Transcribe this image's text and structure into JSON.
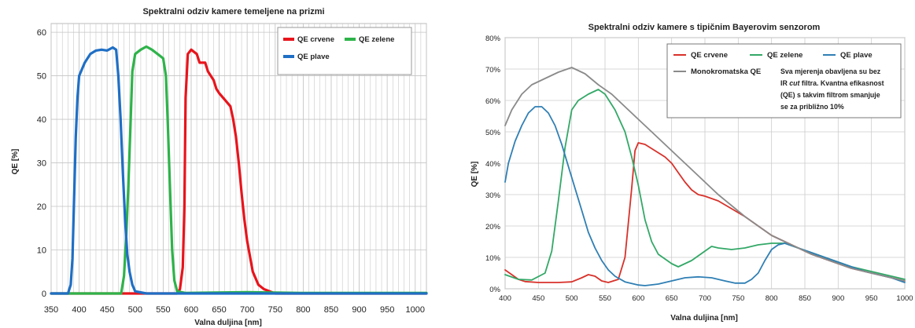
{
  "charts": [
    {
      "type": "line",
      "title": "Spektralni odziv kamere temeljene na prizmi",
      "xlabel": "Valna duljina [nm]",
      "ylabel": "QE [%]",
      "xlim": [
        350,
        1020
      ],
      "ylim": [
        0,
        62
      ],
      "xticks": [
        "350",
        "400",
        "450",
        "500",
        "550",
        "600",
        "650",
        "700",
        "750",
        "800",
        "850",
        "900",
        "950",
        "1000"
      ],
      "yticks": [
        "0",
        "10",
        "20",
        "30",
        "40",
        "50",
        "60"
      ],
      "grid": true,
      "legend_position": "top-right",
      "series": [
        {
          "name": "QE crvene",
          "color": "#e8141c",
          "points": [
            [
              350,
              0
            ],
            [
              575,
              0
            ],
            [
              580,
              1
            ],
            [
              585,
              6
            ],
            [
              588,
              20
            ],
            [
              590,
              45
            ],
            [
              594,
              55
            ],
            [
              600,
              56
            ],
            [
              610,
              55
            ],
            [
              615,
              53
            ],
            [
              625,
              53
            ],
            [
              630,
              51
            ],
            [
              640,
              49
            ],
            [
              645,
              47
            ],
            [
              650,
              46
            ],
            [
              660,
              44.5
            ],
            [
              670,
              43
            ],
            [
              675,
              40
            ],
            [
              680,
              36
            ],
            [
              685,
              30
            ],
            [
              690,
              23
            ],
            [
              695,
              17
            ],
            [
              700,
              12
            ],
            [
              710,
              5
            ],
            [
              720,
              2
            ],
            [
              730,
              1
            ],
            [
              750,
              0
            ],
            [
              1020,
              0
            ]
          ]
        },
        {
          "name": "QE zelene",
          "color": "#2eb34a",
          "points": [
            [
              350,
              0
            ],
            [
              475,
              0
            ],
            [
              480,
              4
            ],
            [
              484,
              13
            ],
            [
              488,
              25
            ],
            [
              492,
              40
            ],
            [
              495,
              51
            ],
            [
              500,
              55
            ],
            [
              510,
              56
            ],
            [
              520,
              56.7
            ],
            [
              530,
              56
            ],
            [
              540,
              55
            ],
            [
              550,
              54
            ],
            [
              555,
              50
            ],
            [
              558,
              40
            ],
            [
              562,
              25
            ],
            [
              566,
              10
            ],
            [
              570,
              3
            ],
            [
              575,
              0.5
            ],
            [
              590,
              0.1
            ],
            [
              700,
              0.3
            ],
            [
              800,
              0.1
            ],
            [
              1020,
              0.1
            ]
          ]
        },
        {
          "name": "QE plave",
          "color": "#1f6fc5",
          "points": [
            [
              350,
              0
            ],
            [
              380,
              0
            ],
            [
              385,
              2
            ],
            [
              388,
              8
            ],
            [
              391,
              22
            ],
            [
              394,
              36
            ],
            [
              397,
              45
            ],
            [
              400,
              50
            ],
            [
              410,
              53
            ],
            [
              420,
              55
            ],
            [
              430,
              55.8
            ],
            [
              440,
              56
            ],
            [
              450,
              55.8
            ],
            [
              460,
              56.5
            ],
            [
              466,
              56
            ],
            [
              470,
              50
            ],
            [
              474,
              40
            ],
            [
              478,
              28
            ],
            [
              482,
              17
            ],
            [
              486,
              9
            ],
            [
              490,
              5
            ],
            [
              495,
              2
            ],
            [
              500,
              0.5
            ],
            [
              520,
              0
            ],
            [
              1020,
              0
            ]
          ]
        }
      ]
    },
    {
      "type": "line",
      "title": "Spektralni odziv kamere s tipičnim Bayerovim senzorom",
      "xlabel": "Valna duljina [nm]",
      "ylabel": "QE [%]",
      "xlim": [
        400,
        1000
      ],
      "ylim": [
        0,
        80
      ],
      "xticks": [
        "400",
        "450",
        "500",
        "550",
        "600",
        "650",
        "700",
        "750",
        "800",
        "850",
        "900",
        "950",
        "1000"
      ],
      "yticks": [
        "0%",
        "10%",
        "20%",
        "30%",
        "40%",
        "50%",
        "60%",
        "70%",
        "80%"
      ],
      "grid": true,
      "legend_position": "top-right",
      "note": [
        "Sva mjerenja obavljena su bez",
        "IR",
        "cut",
        "filtra. Kvantna efikasnost",
        "(QE) s takvim filtrom smanjuje",
        "se za približno 10%"
      ],
      "series": [
        {
          "name": "QE crvene",
          "color": "#d8312a",
          "points": [
            [
              400,
              6
            ],
            [
              410,
              4.5
            ],
            [
              420,
              3
            ],
            [
              430,
              2.3
            ],
            [
              450,
              2
            ],
            [
              480,
              2
            ],
            [
              500,
              2.2
            ],
            [
              515,
              3.5
            ],
            [
              525,
              4.5
            ],
            [
              535,
              4
            ],
            [
              545,
              2.5
            ],
            [
              555,
              2
            ],
            [
              570,
              3
            ],
            [
              580,
              10
            ],
            [
              590,
              32
            ],
            [
              595,
              44
            ],
            [
              600,
              46.5
            ],
            [
              610,
              46
            ],
            [
              625,
              44
            ],
            [
              640,
              42
            ],
            [
              650,
              40
            ],
            [
              660,
              37
            ],
            [
              670,
              34
            ],
            [
              680,
              31.5
            ],
            [
              690,
              30
            ],
            [
              700,
              29.5
            ],
            [
              720,
              28
            ],
            [
              740,
              25.5
            ],
            [
              760,
              23
            ],
            [
              780,
              20
            ],
            [
              800,
              17
            ],
            [
              820,
              15
            ],
            [
              840,
              13
            ],
            [
              860,
              11
            ],
            [
              880,
              9.5
            ],
            [
              900,
              8
            ],
            [
              920,
              6.5
            ],
            [
              940,
              5.5
            ],
            [
              960,
              4.5
            ],
            [
              980,
              3.5
            ],
            [
              1000,
              2.5
            ]
          ]
        },
        {
          "name": "QE zelene",
          "color": "#33a867",
          "points": [
            [
              400,
              4.5
            ],
            [
              420,
              3
            ],
            [
              440,
              2.8
            ],
            [
              460,
              5
            ],
            [
              470,
              12
            ],
            [
              480,
              28
            ],
            [
              490,
              45
            ],
            [
              500,
              57
            ],
            [
              510,
              60
            ],
            [
              525,
              62
            ],
            [
              540,
              63.5
            ],
            [
              550,
              62
            ],
            [
              565,
              57
            ],
            [
              580,
              50
            ],
            [
              590,
              42
            ],
            [
              600,
              33
            ],
            [
              610,
              22
            ],
            [
              620,
              15
            ],
            [
              630,
              11
            ],
            [
              650,
              8
            ],
            [
              660,
              7
            ],
            [
              680,
              9
            ],
            [
              700,
              12
            ],
            [
              710,
              13.5
            ],
            [
              720,
              13
            ],
            [
              740,
              12.5
            ],
            [
              760,
              13
            ],
            [
              780,
              14
            ],
            [
              800,
              14.5
            ],
            [
              820,
              14.5
            ],
            [
              840,
              13
            ],
            [
              860,
              11.5
            ],
            [
              880,
              10
            ],
            [
              900,
              8.5
            ],
            [
              920,
              7
            ],
            [
              940,
              6
            ],
            [
              960,
              5
            ],
            [
              980,
              4
            ],
            [
              1000,
              3
            ]
          ]
        },
        {
          "name": "QE plave",
          "color": "#2f7fb4",
          "points": [
            [
              400,
              34
            ],
            [
              405,
              40
            ],
            [
              415,
              47
            ],
            [
              425,
              52
            ],
            [
              435,
              56
            ],
            [
              445,
              58
            ],
            [
              455,
              58
            ],
            [
              465,
              56
            ],
            [
              475,
              52
            ],
            [
              485,
              46
            ],
            [
              495,
              39
            ],
            [
              505,
              32
            ],
            [
              515,
              25
            ],
            [
              525,
              18
            ],
            [
              535,
              13
            ],
            [
              545,
              9
            ],
            [
              555,
              6
            ],
            [
              565,
              4
            ],
            [
              580,
              2.2
            ],
            [
              600,
              1.2
            ],
            [
              610,
              1
            ],
            [
              630,
              1.5
            ],
            [
              650,
              2.5
            ],
            [
              670,
              3.5
            ],
            [
              690,
              3.8
            ],
            [
              710,
              3.5
            ],
            [
              730,
              2.5
            ],
            [
              745,
              1.8
            ],
            [
              760,
              1.8
            ],
            [
              770,
              3
            ],
            [
              780,
              5
            ],
            [
              790,
              9
            ],
            [
              800,
              12.5
            ],
            [
              810,
              14
            ],
            [
              820,
              14.5
            ],
            [
              840,
              13
            ],
            [
              860,
              11.5
            ],
            [
              880,
              10
            ],
            [
              900,
              8.5
            ],
            [
              920,
              7
            ],
            [
              940,
              5.5
            ],
            [
              960,
              4.5
            ],
            [
              980,
              3.5
            ],
            [
              1000,
              2
            ]
          ]
        },
        {
          "name": "Monokromatska QE",
          "color": "#8a8a8a",
          "points": [
            [
              400,
              52
            ],
            [
              410,
              57
            ],
            [
              425,
              62
            ],
            [
              440,
              65
            ],
            [
              460,
              67
            ],
            [
              480,
              69
            ],
            [
              500,
              70.5
            ],
            [
              520,
              68.5
            ],
            [
              540,
              65
            ],
            [
              560,
              62
            ],
            [
              580,
              58
            ],
            [
              600,
              54
            ],
            [
              620,
              50
            ],
            [
              640,
              46
            ],
            [
              660,
              42
            ],
            [
              680,
              38
            ],
            [
              700,
              34
            ],
            [
              720,
              30
            ],
            [
              740,
              26.5
            ],
            [
              760,
              23
            ],
            [
              780,
              20
            ],
            [
              800,
              17
            ],
            [
              820,
              15
            ],
            [
              840,
              13
            ],
            [
              860,
              11
            ],
            [
              880,
              9.5
            ],
            [
              900,
              8
            ],
            [
              920,
              6.5
            ],
            [
              940,
              5.5
            ],
            [
              960,
              4.5
            ],
            [
              980,
              3.5
            ],
            [
              1000,
              2.5
            ]
          ]
        }
      ]
    }
  ],
  "colors": {
    "grid": "#c8c8c8",
    "plot_bg": "#ffffff",
    "axis": "#555555"
  }
}
